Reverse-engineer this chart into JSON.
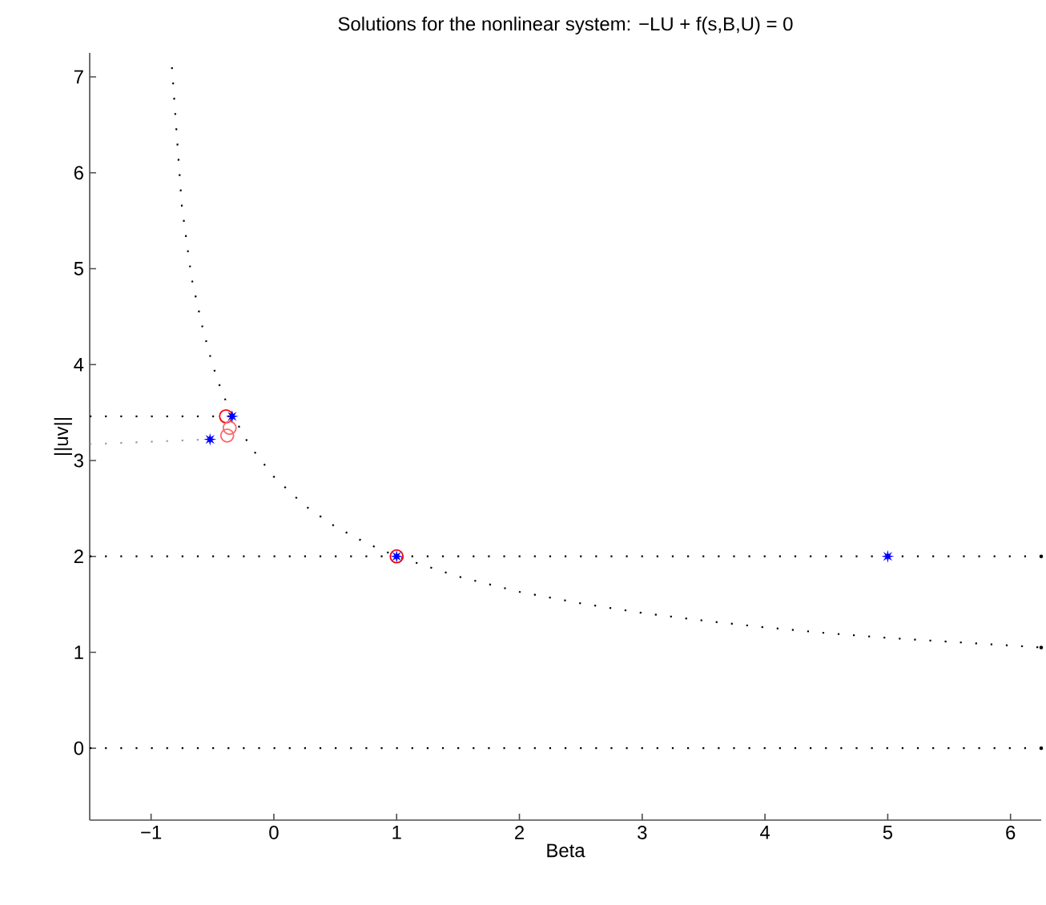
{
  "chart_data": {
    "type": "line",
    "title": "Solutions for the nonlinear system: −LU + f(s,B,U) = 0",
    "xlabel": "Beta",
    "ylabel": "||uv||",
    "xlim": [
      -1.5,
      6.25
    ],
    "ylim": [
      -0.75,
      7.25
    ],
    "xticks": [
      {
        "value": -1,
        "label": "−1"
      },
      0,
      1,
      2,
      3,
      4,
      5,
      6
    ],
    "yticks": [
      0,
      1,
      2,
      3,
      4,
      5,
      6,
      7
    ],
    "series": [
      {
        "line_style": "dotted",
        "marker": "none",
        "color": "#000000",
        "x": [
          -0.83,
          -0.75,
          -0.67,
          -0.58,
          -0.5,
          -0.42,
          -0.33,
          -0.2,
          0,
          0.25,
          0.5,
          0.75,
          1,
          1.5,
          2,
          2.5,
          3,
          3.5,
          4,
          4.5,
          5,
          5.5,
          6,
          6.25
        ],
        "values": [
          7.1,
          5.66,
          4.9,
          4.38,
          4.0,
          3.7,
          3.46,
          3.16,
          2.83,
          2.53,
          2.31,
          2.14,
          2.0,
          1.79,
          1.63,
          1.51,
          1.41,
          1.33,
          1.26,
          1.2,
          1.15,
          1.11,
          1.07,
          1.05
        ]
      },
      {
        "line_style": "dotted",
        "marker": "none",
        "color": "#000000",
        "x": [
          -1.5,
          6.25
        ],
        "values": [
          2,
          2
        ]
      },
      {
        "line_style": "dotted",
        "marker": "none",
        "color": "#000000",
        "x": [
          -1.5,
          6.25
        ],
        "values": [
          0,
          0
        ]
      },
      {
        "line_style": "dotted",
        "marker": "none",
        "color": "#000000",
        "x": [
          -1.5,
          -0.34
        ],
        "values": [
          3.46,
          3.46
        ]
      },
      {
        "line_style": "dotted",
        "marker": "none",
        "color": "#999999",
        "x": [
          -1.5,
          -0.52
        ],
        "values": [
          3.17,
          3.22
        ]
      },
      {
        "type": "scatter",
        "marker": "circle",
        "color": "#ff0000",
        "x": [
          -0.39,
          1
        ],
        "values": [
          3.46,
          2
        ]
      },
      {
        "type": "scatter",
        "marker": "circle",
        "color": "#ff6666",
        "x": [
          -0.36,
          -0.38
        ],
        "values": [
          3.34,
          3.26
        ]
      },
      {
        "type": "scatter",
        "marker": "star",
        "color": "#0000ff",
        "x": [
          -0.34,
          1,
          5,
          -0.52
        ],
        "values": [
          3.46,
          2,
          2,
          3.22
        ]
      }
    ]
  }
}
